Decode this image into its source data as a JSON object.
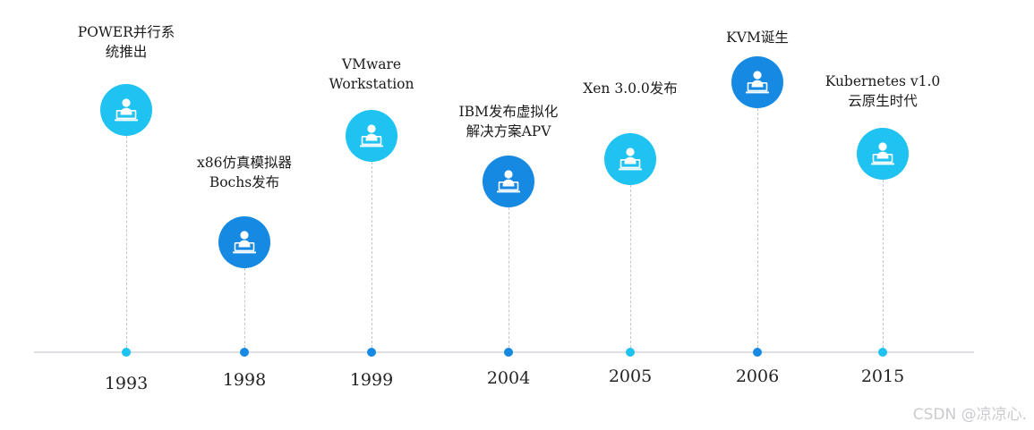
{
  "timeline": {
    "events": [
      {
        "year": "1993",
        "lines": [
          "POWER并行系",
          "统推出"
        ],
        "color": "#1fc3f1",
        "icon": "person-at-computer-icon"
      },
      {
        "year": "1998",
        "lines": [
          "x86仿真模拟器",
          "Bochs发布"
        ],
        "color": "#1689e3",
        "icon": "person-at-computer-icon"
      },
      {
        "year": "1999",
        "lines": [
          "VMware",
          "Workstation"
        ],
        "color": "#1fc3f1",
        "icon": "person-at-computer-icon"
      },
      {
        "year": "2004",
        "lines": [
          "IBM发布虚拟化",
          "解决方案APV"
        ],
        "color": "#1689e3",
        "icon": "person-at-computer-icon"
      },
      {
        "year": "2005",
        "lines": [
          "Xen 3.0.0发布"
        ],
        "color": "#1fc3f1",
        "icon": "person-at-computer-icon"
      },
      {
        "year": "2006",
        "lines": [
          "KVM诞生"
        ],
        "color": "#1689e3",
        "icon": "person-at-computer-icon"
      },
      {
        "year": "2015",
        "lines": [
          "Kubernetes v1.0",
          "云原生时代"
        ],
        "color": "#1fc3f1",
        "icon": "person-at-computer-icon"
      }
    ]
  },
  "watermark": "CSDN @凉凉心."
}
